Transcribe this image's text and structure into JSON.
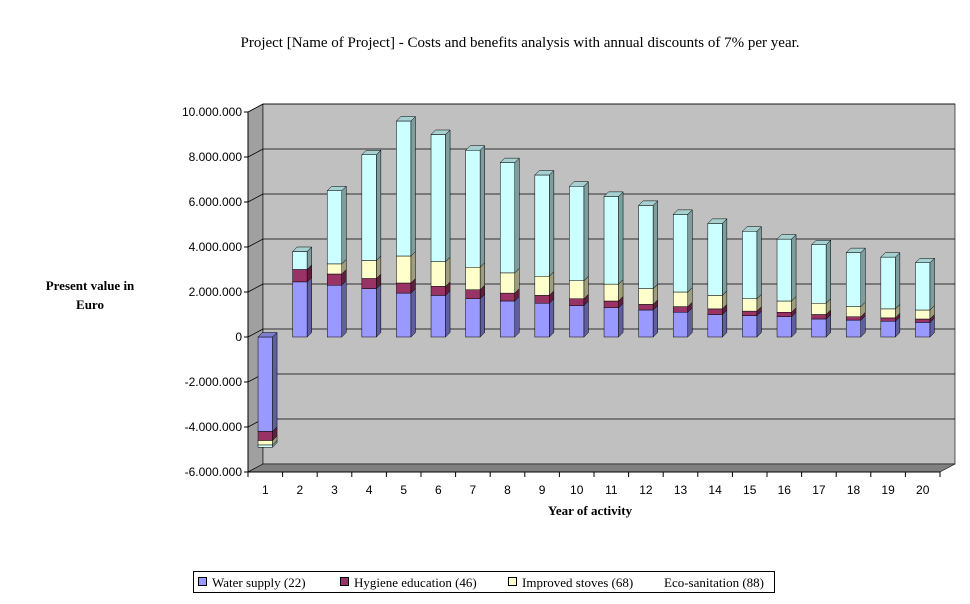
{
  "chart_data": {
    "type": "bar",
    "stacked": true,
    "three_d": true,
    "title": "Project [Name of Project] - Costs and benefits analysis with annual discounts of 7% per year.",
    "xlabel": "Year of activity",
    "ylabel_lines": [
      "Present value in",
      "Euro"
    ],
    "ylim": [
      -6000000,
      10000000
    ],
    "yticks": [
      10000000,
      8000000,
      6000000,
      4000000,
      2000000,
      0,
      -2000000,
      -4000000,
      -6000000
    ],
    "ytick_labels": [
      "10.000.000",
      "8.000.000",
      "6.000.000",
      "4.000.000",
      "2.000.000",
      "0",
      "-2.000.000",
      "-4.000.000",
      "-6.000.000"
    ],
    "categories": [
      "1",
      "2",
      "3",
      "4",
      "5",
      "6",
      "7",
      "8",
      "9",
      "10",
      "11",
      "12",
      "13",
      "14",
      "15",
      "16",
      "17",
      "18",
      "19",
      "20"
    ],
    "grid": true,
    "legend_position": "bottom",
    "series": [
      {
        "name": "Water supply (22)",
        "color": "#9999ff",
        "values": [
          -4200000,
          2450000,
          2300000,
          2150000,
          1950000,
          1850000,
          1700000,
          1600000,
          1500000,
          1400000,
          1300000,
          1200000,
          1100000,
          1000000,
          950000,
          900000,
          800000,
          750000,
          700000,
          650000
        ]
      },
      {
        "name": "Hygiene education (46)",
        "color": "#993366",
        "values": [
          -400000,
          550000,
          500000,
          450000,
          450000,
          400000,
          400000,
          350000,
          350000,
          300000,
          300000,
          250000,
          250000,
          250000,
          200000,
          200000,
          200000,
          150000,
          150000,
          150000
        ]
      },
      {
        "name": "Improved stoves (68)",
        "color": "#ffffcc",
        "values": [
          -200000,
          0,
          450000,
          800000,
          1200000,
          1100000,
          1000000,
          900000,
          850000,
          800000,
          750000,
          700000,
          650000,
          600000,
          550000,
          500000,
          500000,
          450000,
          400000,
          400000
        ]
      },
      {
        "name": "Eco-sanitation (88)",
        "color": "#ccffff",
        "values": [
          -100000,
          800000,
          3250000,
          4700000,
          6000000,
          5650000,
          5200000,
          4900000,
          4500000,
          4200000,
          3900000,
          3700000,
          3450000,
          3200000,
          3000000,
          2750000,
          2600000,
          2400000,
          2300000,
          2100000
        ]
      }
    ]
  },
  "colors": {
    "plot_back": "#c0c0c0",
    "plot_side": "#a0a0a0",
    "plot_floor": "#808080",
    "grid": "#000000"
  }
}
